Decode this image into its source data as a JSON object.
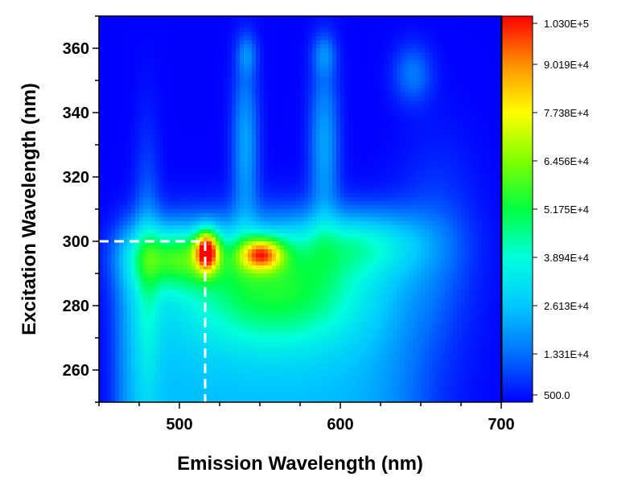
{
  "chart_data": {
    "type": "heatmap",
    "title": "",
    "xlabel": "Emission Wavelength (nm)",
    "ylabel": "Excitation Wavelength (nm)",
    "xlim": [
      450,
      700
    ],
    "ylim": [
      250,
      370
    ],
    "x_ticks": [
      500,
      600,
      700
    ],
    "y_ticks": [
      260,
      280,
      300,
      320,
      340,
      360
    ],
    "colorbar": {
      "min": 500.0,
      "max": 103000,
      "tick_labels": [
        "1.030E+5",
        "9.019E+4",
        "7.738E+4",
        "6.456E+4",
        "5.175E+4",
        "3.894E+4",
        "2.613E+4",
        "1.331E+4",
        "500.0"
      ],
      "tick_values": [
        103000,
        90190,
        77380,
        64560,
        51750,
        38940,
        26130,
        13310,
        500
      ],
      "colormap": [
        "#0000ff",
        "#0070ff",
        "#00c8ff",
        "#00ffdc",
        "#00ff40",
        "#80ff00",
        "#ffff00",
        "#ff9000",
        "#ff0000"
      ]
    },
    "peaks": [
      {
        "x": 517,
        "y": 298,
        "value": 100000
      },
      {
        "x": 550,
        "y": 296,
        "value": 88000
      },
      {
        "x": 542,
        "y": 357,
        "value": 40000
      },
      {
        "x": 590,
        "y": 357,
        "value": 40000
      }
    ],
    "annotation": {
      "x": 516,
      "y": 300,
      "style": "dashed",
      "color": "#ffffff"
    },
    "background_level": 500,
    "grid": false,
    "legend": "colorbar-right"
  }
}
